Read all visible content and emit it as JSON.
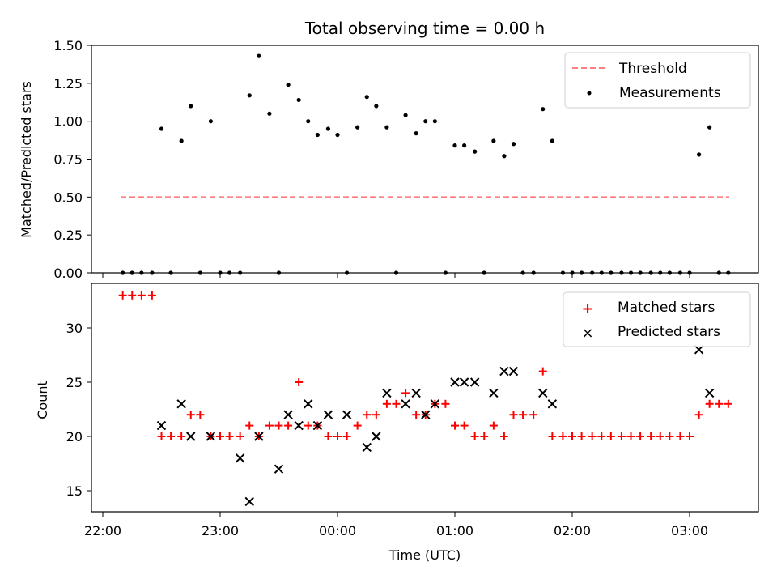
{
  "chart_data": [
    {
      "type": "scatter",
      "title": "Total observing time = 0.00 h",
      "ylabel": "Matched/Predicted stars",
      "xlabel": "",
      "ylim": [
        0,
        1.5
      ],
      "yticks": [
        "0.00",
        "0.25",
        "0.50",
        "0.75",
        "1.00",
        "1.25",
        "1.50"
      ],
      "threshold": 0.5,
      "legend": {
        "placement": "upper right",
        "entries": [
          {
            "label": "Threshold",
            "marker": "dashed-line",
            "color": "#ff7f7f"
          },
          {
            "label": "Measurements",
            "marker": "dot",
            "color": "#000000"
          }
        ]
      },
      "x_hours": [
        22.17,
        22.25,
        22.33,
        22.42,
        22.5,
        22.58,
        22.67,
        22.75,
        22.83,
        22.92,
        23.0,
        23.08,
        23.17,
        23.25,
        23.33,
        23.42,
        23.5,
        23.58,
        23.67,
        23.75,
        23.83,
        23.92,
        24.0,
        24.08,
        24.17,
        24.25,
        24.33,
        24.42,
        24.5,
        24.58,
        24.67,
        24.75,
        24.83,
        24.92,
        25.0,
        25.08,
        25.17,
        25.25,
        25.33,
        25.42,
        25.5,
        25.58,
        25.67,
        25.75,
        25.83,
        25.92,
        26.0,
        26.08,
        26.17,
        26.25,
        26.33,
        26.42,
        26.5,
        26.58,
        26.67,
        26.75,
        26.83,
        26.92,
        27.0,
        27.08,
        27.17,
        27.25,
        27.33
      ],
      "values": [
        0,
        0,
        0,
        0,
        0.95,
        0,
        0.87,
        1.1,
        0,
        1.0,
        0,
        0,
        0,
        1.17,
        1.43,
        1.05,
        0,
        1.24,
        1.14,
        1.0,
        0.91,
        0.95,
        0.91,
        0,
        0.96,
        1.16,
        1.1,
        0.96,
        0,
        1.04,
        0.92,
        1.0,
        1.0,
        0,
        0.84,
        0.84,
        0.8,
        0,
        0.87,
        0.77,
        0.85,
        0,
        0,
        1.08,
        0.87,
        0,
        0,
        0,
        0,
        0,
        0,
        0,
        0,
        0,
        0,
        0,
        0,
        0,
        0,
        0.78,
        0.96,
        0,
        0
      ]
    },
    {
      "type": "scatter",
      "title": "",
      "ylabel": "Count",
      "xlabel": "Time (UTC)",
      "yticks": [
        "15",
        "20",
        "25",
        "30"
      ],
      "xticks": [
        "22:00",
        "23:00",
        "00:00",
        "01:00",
        "02:00",
        "03:00"
      ],
      "legend": {
        "placement": "upper right",
        "entries": [
          {
            "label": "Matched stars",
            "marker": "plus",
            "color": "#ff0000"
          },
          {
            "label": "Predicted stars",
            "marker": "x",
            "color": "#000000"
          }
        ]
      },
      "series": [
        {
          "name": "Matched stars",
          "x_hours": [
            22.17,
            22.25,
            22.33,
            22.42,
            22.5,
            22.58,
            22.67,
            22.75,
            22.83,
            22.92,
            23.0,
            23.08,
            23.17,
            23.25,
            23.33,
            23.42,
            23.5,
            23.58,
            23.67,
            23.75,
            23.83,
            23.92,
            24.0,
            24.08,
            24.17,
            24.25,
            24.33,
            24.42,
            24.5,
            24.58,
            24.67,
            24.75,
            24.83,
            24.92,
            25.0,
            25.08,
            25.17,
            25.25,
            25.33,
            25.42,
            25.5,
            25.58,
            25.67,
            25.75,
            25.83,
            25.92,
            26.0,
            26.08,
            26.17,
            26.25,
            26.33,
            26.42,
            26.5,
            26.58,
            26.67,
            26.75,
            26.83,
            26.92,
            27.0,
            27.08,
            27.17,
            27.25,
            27.33
          ],
          "values": [
            33,
            33,
            33,
            33,
            20,
            20,
            20,
            22,
            22,
            20,
            20,
            20,
            20,
            21,
            20,
            21,
            21,
            21,
            25,
            21,
            21,
            20,
            20,
            20,
            21,
            22,
            22,
            23,
            23,
            24,
            22,
            22,
            23,
            23,
            21,
            21,
            20,
            20,
            21,
            20,
            22,
            22,
            22,
            26,
            20,
            20,
            20,
            20,
            20,
            20,
            20,
            20,
            20,
            20,
            20,
            20,
            20,
            20,
            20,
            22,
            23,
            23,
            23
          ]
        },
        {
          "name": "Predicted stars",
          "x_hours": [
            22.5,
            22.67,
            22.75,
            22.92,
            23.17,
            23.25,
            23.33,
            23.5,
            23.58,
            23.67,
            23.75,
            23.83,
            23.92,
            24.08,
            24.25,
            24.33,
            24.42,
            24.58,
            24.67,
            24.75,
            24.83,
            25.0,
            25.08,
            25.17,
            25.33,
            25.42,
            25.5,
            25.75,
            25.83,
            27.08,
            27.17
          ],
          "values": [
            21,
            23,
            20,
            20,
            18,
            14,
            20,
            17,
            22,
            21,
            23,
            21,
            22,
            22,
            19,
            20,
            24,
            23,
            24,
            22,
            23,
            25,
            25,
            25,
            24,
            26,
            26,
            24,
            23,
            28,
            24
          ]
        }
      ]
    }
  ]
}
